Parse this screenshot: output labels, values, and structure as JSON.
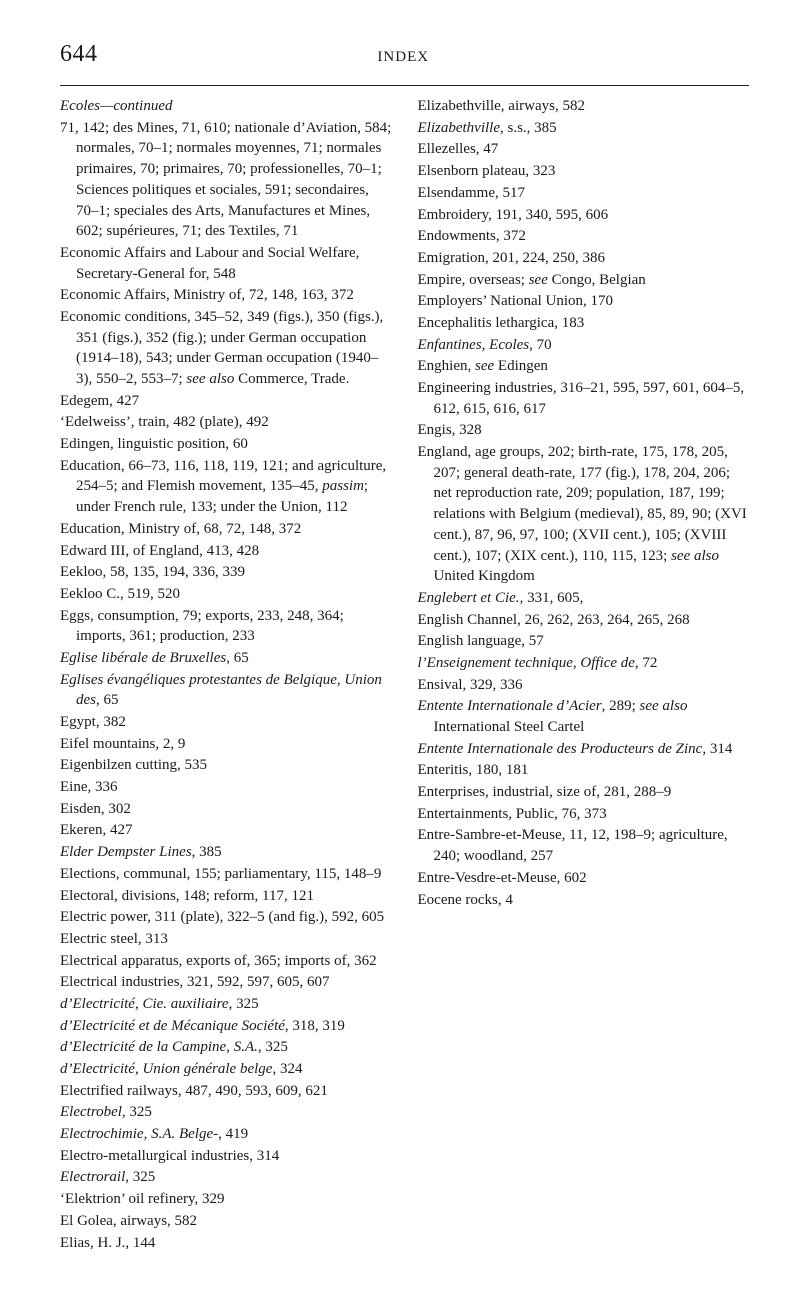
{
  "page_number": "644",
  "page_title": "INDEX",
  "left_column": [
    {
      "html": "<span class='i'>Ecoles—continued</span>"
    },
    {
      "html": "71, 142; des Mines, 71, 610; nationale d’Aviation, 584; normales, 70–1; normales moyennes, 71; normales primaires, 70; primaires, 70; profes­sionelles, 70–1; Sciences politiques et sociales, 591; secondaires, 70–1; speciales des Arts, Manufactures et Mines, 602; supérieures, 71; des Textiles, 71",
      "cont": true
    },
    {
      "html": "Economic Affairs and Labour and Social Welfare, Secretary-General for, 548"
    },
    {
      "html": "Economic Affairs, Ministry of, 72, 148, 163, 372"
    },
    {
      "html": "Economic conditions, 345–52, 349 (figs.), 350 (figs.), 351 (figs.), 352 (fig.); under German occupation (1914–18), 543; under German occu­pation (1940–3), 550–2, 553–7; <span class='i'>see also</span> Commerce, Trade."
    },
    {
      "html": "Edegem, 427"
    },
    {
      "html": "‘Edelweiss’, train, 482 (plate), 492"
    },
    {
      "html": "Edingen, linguistic position, 60"
    },
    {
      "html": "Education, 66–73, 116, 118, 119, 121; and agriculture, 254–5; and Flemish movement, 135–45, <span class='i'>passim</span>; under French rule, 133; under the Union, 112"
    },
    {
      "html": "Education, Ministry of, 68, 72, 148, 372"
    },
    {
      "html": "Edward III, of England, 413, 428"
    },
    {
      "html": "Eekloo, 58, 135, 194, 336, 339"
    },
    {
      "html": "Eekloo C., 519, 520"
    },
    {
      "html": "Eggs, consumption, 79; exports, 233, 248, 364; imports, 361; production, 233"
    },
    {
      "html": "<span class='i'>Eglise libérale de Bruxelles</span>, 65"
    },
    {
      "html": "<span class='i'>Eglises évangéliques protestantes de Bel­gique, Union des</span>, 65"
    },
    {
      "html": "Egypt, 382"
    },
    {
      "html": "Eifel mountains, 2, 9"
    },
    {
      "html": "Eigenbilzen cutting, 535"
    },
    {
      "html": "Eine, 336"
    },
    {
      "html": "Eisden, 302"
    },
    {
      "html": "Ekeren, 427"
    },
    {
      "html": "<span class='i'>Elder Dempster Lines</span>, 385"
    },
    {
      "html": "Elections, communal, 155; parliament­ary, 115, 148–9"
    },
    {
      "html": "Electoral, divisions, 148; reform, 117, 121"
    },
    {
      "html": "Electric power, 311 (plate), 322–5 (and fig.), 592, 605"
    },
    {
      "html": "Electric steel, 313"
    },
    {
      "html": "Electrical apparatus, exports of, 365; imports of, 362"
    },
    {
      "html": "Electrical industries, 321, 592, 597, 605, 607"
    }
  ],
  "right_column": [
    {
      "html": "<span class='i'>d’Electricité, Cie. auxiliaire</span>, 325"
    },
    {
      "html": "<span class='i'>d’Electricité et de Mécanique Société</span>, 318, 319"
    },
    {
      "html": "<span class='i'>d’Electricité de la Campine, S.A.</span>, 325"
    },
    {
      "html": "<span class='i'>d’Electricité, Union générale belge</span>, 324"
    },
    {
      "html": "Electrified railways, 487, 490, 593, 609, 621"
    },
    {
      "html": "<span class='i'>Electrobel</span>, 325"
    },
    {
      "html": "<span class='i'>Electrochimie, S.A. Belge-</span>, 419"
    },
    {
      "html": "Electro-metallurgical industries, 314"
    },
    {
      "html": "<span class='i'>Electrorail</span>, 325"
    },
    {
      "html": "‘Elektrion’ oil refinery, 329"
    },
    {
      "html": "El Golea, airways, 582"
    },
    {
      "html": "Elias, H. J., 144"
    },
    {
      "html": "Elizabethville, airways, 582"
    },
    {
      "html": "<span class='i'>Elizabethville</span>, s.s., 385"
    },
    {
      "html": "Ellezelles, 47"
    },
    {
      "html": "Elsenborn plateau, 323"
    },
    {
      "html": "Elsendamme, 517"
    },
    {
      "html": "Embroidery, 191, 340, 595, 606"
    },
    {
      "html": "Endowments, 372"
    },
    {
      "html": "Emigration, 201, 224, 250, 386"
    },
    {
      "html": "Empire, overseas; <span class='i'>see</span> Congo, Belgian"
    },
    {
      "html": "Employers’ National Union, 170"
    },
    {
      "html": "Encephalitis lethargica, 183"
    },
    {
      "html": "<span class='i'>Enfantines, Ecoles</span>, 70"
    },
    {
      "html": "Enghien, <span class='i'>see</span> Edingen"
    },
    {
      "html": "Engineering industries, 316–21, 595, 597, 601, 604–5, 612, 615, 616, 617"
    },
    {
      "html": "Engis, 328"
    },
    {
      "html": "England, age groups, 202; birth-rate, 175, 178, 205, 207; general death-rate, 177 (fig.), 178, 204, 206; net reproduction rate, 209; population, 187, 199; relations with Belgium (medieval), 85, 89, 90; (XVI cent.), 87, 96, 97, 100; (XVII cent.), 105; (XVIII cent.), 107; (XIX cent.), 110, 115, 123; <span class='i'>see also</span> United Kingdom"
    },
    {
      "html": "<span class='i'>Englebert et Cie.</span>, 331, 605,"
    },
    {
      "html": "English Channel, 26, 262, 263, 264, 265, 268"
    },
    {
      "html": "English language, 57"
    },
    {
      "html": "<span class='i'>l’Enseignement technique, Office de</span>, 72"
    },
    {
      "html": "Ensival, 329, 336"
    },
    {
      "html": "<span class='i'>Entente Internationale d’Acier</span>, 289; <span class='i'>see also</span> International Steel Cartel"
    },
    {
      "html": "<span class='i'>Entente Internationale des Producteurs de Zinc</span>, 314"
    },
    {
      "html": "Enteritis, 180, 181"
    },
    {
      "html": "Enterprises, industrial, size of, 281, 288–9"
    },
    {
      "html": "Entertainments, Public, 76, 373"
    },
    {
      "html": "Entre-Sambre-et-Meuse, 11, 12, 198–9; agriculture, 240; woodland, 257"
    },
    {
      "html": "Entre-Vesdre-et-Meuse, 602"
    },
    {
      "html": "Eocene rocks, 4"
    }
  ]
}
